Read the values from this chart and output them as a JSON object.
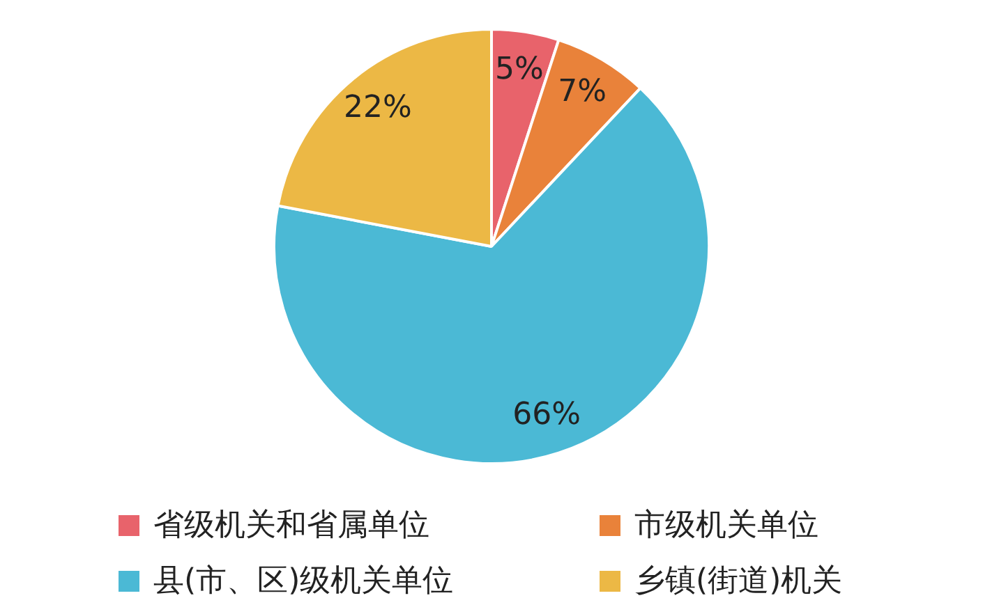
{
  "chart_data": {
    "type": "pie",
    "categories": [
      "省级机关和省属单位",
      "市级机关单位",
      "县(市、区)级机关单位",
      "乡镇(街道)机关"
    ],
    "values": [
      5,
      7,
      66,
      22
    ],
    "colors": [
      "#e8636b",
      "#e9823a",
      "#4bb9d5",
      "#ecb845"
    ],
    "value_labels": [
      "5%",
      "7%",
      "66%",
      "22%"
    ],
    "legend": "bottom"
  }
}
